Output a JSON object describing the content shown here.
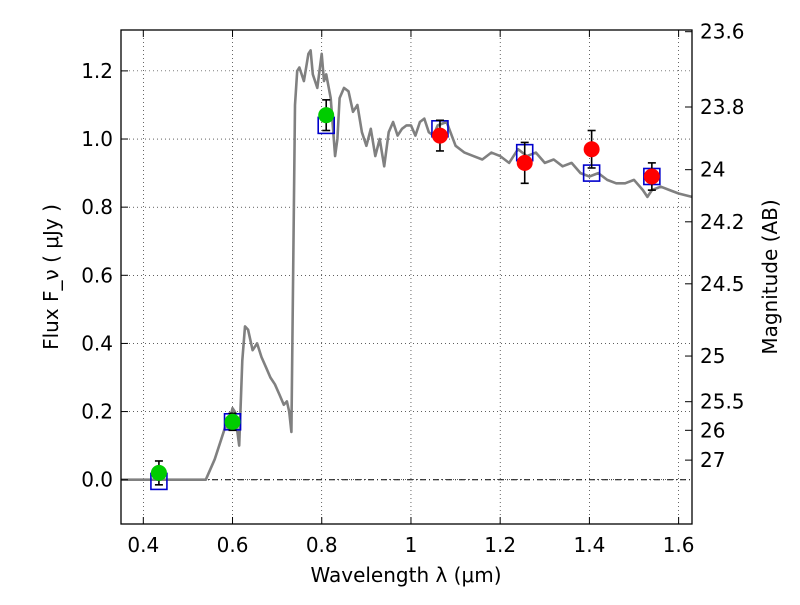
{
  "chart_data": {
    "type": "scatter",
    "title": "",
    "xlabel": "Wavelength  λ (μm)",
    "ylabel": "Flux  F_ν  ( μJy )",
    "ylabel_right": "Magnitude (AB)",
    "xlim": [
      0.35,
      1.63
    ],
    "ylim": [
      -0.13,
      1.32
    ],
    "grid": true,
    "x_ticks": [
      0.4,
      0.6,
      0.8,
      1.0,
      1.2,
      1.4,
      1.6
    ],
    "x_tick_labels": [
      "0.4",
      "0.6",
      "0.8",
      "1",
      "1.2",
      "1.4",
      "1.6"
    ],
    "y_ticks": [
      0.0,
      0.2,
      0.4,
      0.6,
      0.8,
      1.0,
      1.2
    ],
    "y_tick_labels": [
      "0.0",
      "0.2",
      "0.4",
      "0.6",
      "0.8",
      "1.0",
      "1.2"
    ],
    "right_ticks": [
      {
        "label": "23.6",
        "flux": 1.315
      },
      {
        "label": "23.8",
        "flux": 1.094
      },
      {
        "label": "24",
        "flux": 0.91
      },
      {
        "label": "24.2",
        "flux": 0.757
      },
      {
        "label": "24.5",
        "flux": 0.575
      },
      {
        "label": "25",
        "flux": 0.363
      },
      {
        "label": "25.5",
        "flux": 0.229
      },
      {
        "label": "26",
        "flux": 0.145
      },
      {
        "label": "27",
        "flux": 0.0575
      }
    ],
    "series": [
      {
        "kind": "line",
        "color": "#808080",
        "x": [
          0.35,
          0.54,
          0.56,
          0.575,
          0.585,
          0.59,
          0.6,
          0.605,
          0.615,
          0.622,
          0.628,
          0.635,
          0.645,
          0.655,
          0.665,
          0.675,
          0.685,
          0.695,
          0.705,
          0.715,
          0.722,
          0.727,
          0.732,
          0.74,
          0.745,
          0.75,
          0.76,
          0.77,
          0.775,
          0.78,
          0.79,
          0.8,
          0.805,
          0.81,
          0.82,
          0.83,
          0.835,
          0.84,
          0.85,
          0.86,
          0.87,
          0.88,
          0.89,
          0.9,
          0.91,
          0.92,
          0.93,
          0.94,
          0.95,
          0.96,
          0.97,
          0.98,
          0.99,
          1.0,
          1.01,
          1.02,
          1.03,
          1.04,
          1.05,
          1.06,
          1.08,
          1.1,
          1.12,
          1.14,
          1.16,
          1.18,
          1.2,
          1.22,
          1.24,
          1.26,
          1.28,
          1.3,
          1.32,
          1.34,
          1.36,
          1.38,
          1.4,
          1.42,
          1.44,
          1.46,
          1.48,
          1.5,
          1.52,
          1.53,
          1.54,
          1.56,
          1.58,
          1.6,
          1.63
        ],
        "y": [
          0.0,
          0.0,
          0.06,
          0.12,
          0.16,
          0.15,
          0.21,
          0.2,
          0.1,
          0.35,
          0.45,
          0.44,
          0.38,
          0.4,
          0.36,
          0.33,
          0.3,
          0.28,
          0.25,
          0.22,
          0.23,
          0.2,
          0.14,
          1.1,
          1.2,
          1.21,
          1.17,
          1.25,
          1.26,
          1.19,
          1.15,
          1.25,
          1.17,
          1.19,
          1.12,
          0.95,
          1.0,
          1.12,
          1.15,
          1.14,
          1.08,
          1.1,
          1.02,
          0.98,
          1.03,
          0.95,
          1.0,
          0.92,
          1.02,
          1.05,
          1.01,
          1.03,
          1.04,
          1.04,
          1.01,
          1.05,
          1.06,
          1.02,
          1.01,
          1.04,
          1.05,
          0.98,
          0.96,
          0.95,
          0.94,
          0.96,
          0.95,
          0.93,
          0.97,
          0.95,
          0.96,
          0.93,
          0.94,
          0.92,
          0.93,
          0.9,
          0.89,
          0.9,
          0.88,
          0.87,
          0.87,
          0.88,
          0.85,
          0.83,
          0.85,
          0.86,
          0.85,
          0.84,
          0.83
        ]
      },
      {
        "kind": "squares",
        "color": "#0000cc",
        "x": [
          0.435,
          0.6,
          0.81,
          1.065,
          1.255,
          1.405,
          1.54
        ],
        "y": [
          -0.005,
          0.17,
          1.04,
          1.03,
          0.96,
          0.9,
          0.89
        ]
      },
      {
        "kind": "points",
        "color": "#00cc00",
        "x": [
          0.435,
          0.6,
          0.81
        ],
        "y": [
          0.02,
          0.17,
          1.07
        ],
        "err": [
          0.035,
          0.025,
          0.045
        ]
      },
      {
        "kind": "points",
        "color": "#ff0000",
        "x": [
          1.065,
          1.255,
          1.405,
          1.54
        ],
        "y": [
          1.01,
          0.93,
          0.97,
          0.89
        ],
        "err": [
          0.045,
          0.06,
          0.055,
          0.04
        ]
      }
    ]
  }
}
